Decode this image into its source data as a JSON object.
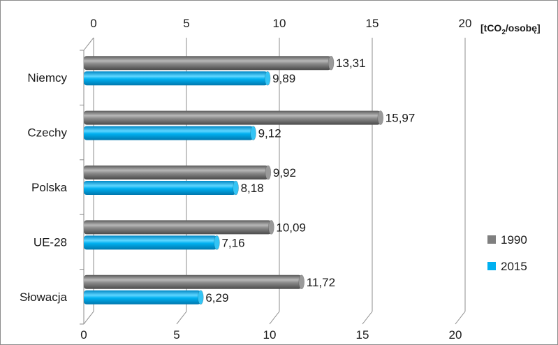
{
  "chart_data": {
    "type": "bar",
    "orientation": "horizontal",
    "categories": [
      "Niemcy",
      "Czechy",
      "Polska",
      "UE-28",
      "Słowacja"
    ],
    "series": [
      {
        "name": "1990",
        "values": [
          13.31,
          15.97,
          9.92,
          10.09,
          11.72
        ],
        "labels": [
          "13,31",
          "15,97",
          "9,92",
          "10,09",
          "11,72"
        ],
        "color": "#7f7f7f"
      },
      {
        "name": "2015",
        "values": [
          9.89,
          9.12,
          8.18,
          7.16,
          6.29
        ],
        "labels": [
          "9,89",
          "9,12",
          "8,18",
          "7,16",
          "6,29"
        ],
        "color": "#00b0f0"
      }
    ],
    "xlim": [
      0,
      20
    ],
    "x_ticks": [
      0,
      5,
      10,
      15,
      20
    ],
    "x_tick_labels": [
      "0",
      "5",
      "10",
      "15",
      "20"
    ],
    "unit": {
      "prefix": "[tCO",
      "subscript": "2",
      "suffix": "/osobę]"
    },
    "grid": true,
    "style": "3d-cylinder",
    "legend_position": "right"
  }
}
